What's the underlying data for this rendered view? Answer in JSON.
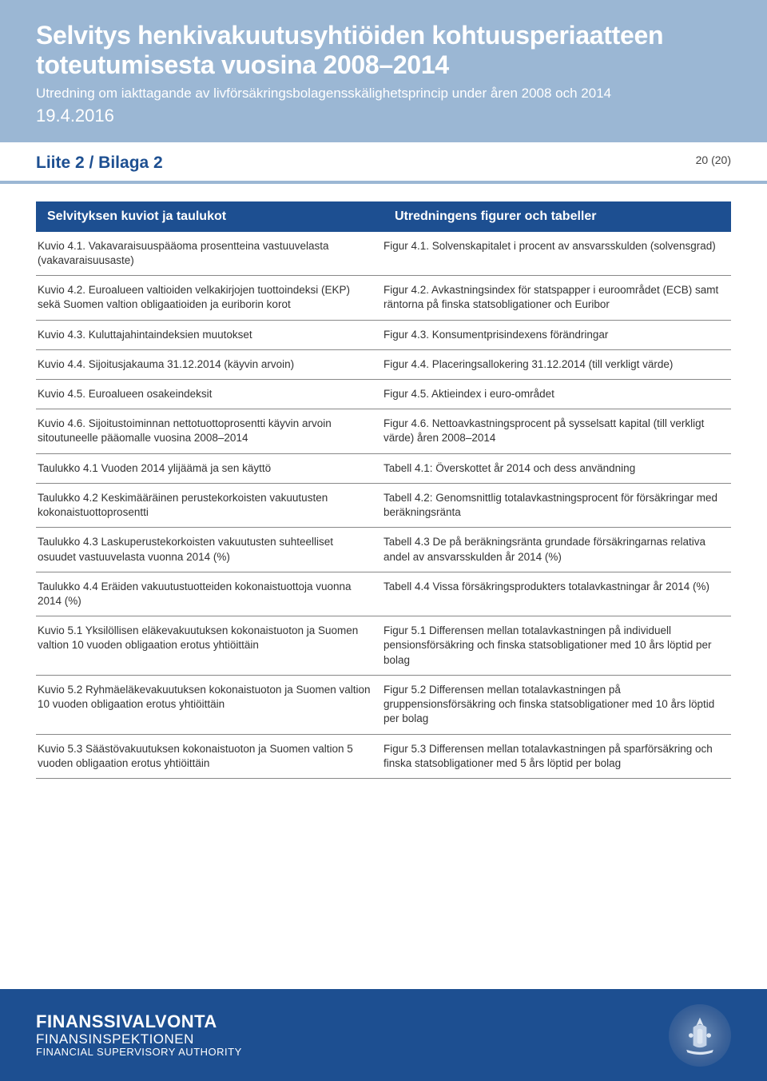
{
  "header": {
    "title": "Selvitys henkivakuutusyhtiöiden kohtuusperiaatteen toteutumisesta vuosina 2008–2014",
    "subtitle": "Utredning om iakttagande av livförsäkringsbolagensskälighetsprincip under åren 2008 och 2014",
    "date": "19.4.2016",
    "section": "Liite 2 / Bilaga 2",
    "page": "20 (20)"
  },
  "table_header": {
    "left": "Selvityksen kuviot ja taulukot",
    "right": "Utredningens figurer och tabeller"
  },
  "rows": [
    {
      "left": "Kuvio 4.1. Vakavaraisuuspääoma prosentteina vastuuvelasta (vakavaraisuusaste)",
      "right": "Figur 4.1. Solvenskapitalet i procent av ansvarsskulden (solvensgrad)"
    },
    {
      "left": "Kuvio 4.2. Euroalueen valtioiden velkakirjojen tuottoindeksi (EKP) sekä Suomen valtion obligaatioiden ja euriborin korot",
      "right": "Figur 4.2. Avkastningsindex för statspapper i euroområdet (ECB) samt räntorna på finska statsobligationer och Euribor"
    },
    {
      "left": "Kuvio 4.3. Kuluttajahintaindeksien muutokset",
      "right": "Figur 4.3. Konsumentprisindexens förändringar"
    },
    {
      "left": "Kuvio 4.4. Sijoitusjakauma 31.12.2014 (käyvin arvoin)",
      "right": "Figur 4.4. Placeringsallokering 31.12.2014 (till verkligt värde)"
    },
    {
      "left": "Kuvio 4.5. Euroalueen osakeindeksit",
      "right": "Figur 4.5. Aktieindex i euro-området"
    },
    {
      "left": "Kuvio 4.6. Sijoitustoiminnan nettotuottoprosentti käyvin arvoin sitoutuneelle pääomalle vuosina 2008–2014",
      "right": "Figur 4.6. Nettoavkastningsprocent på sysselsatt kapital (till verkligt värde) åren 2008–2014"
    },
    {
      "left": "Taulukko 4.1 Vuoden 2014 ylijäämä ja sen käyttö",
      "right": "Tabell 4.1: Överskottet år 2014 och dess användning"
    },
    {
      "left": "Taulukko 4.2 Keskimääräinen perustekorkoisten vakuutusten kokonaistuottoprosentti",
      "right": "Tabell 4.2: Genomsnittlig totalavkastningsprocent för försäkringar med beräkningsränta"
    },
    {
      "left": "Taulukko 4.3 Laskuperustekorkoisten vakuutusten suhteelliset osuudet vastuuvelasta vuonna 2014 (%)",
      "right": "Tabell 4.3 De på beräkningsränta grundade försäkringarnas relativa andel av ansvarsskulden år 2014 (%)"
    },
    {
      "left": "Taulukko 4.4 Eräiden vakuutustuotteiden kokonaistuottoja vuonna 2014 (%)",
      "right": "Tabell 4.4 Vissa försäkringsprodukters totalavkastningar år 2014 (%)"
    },
    {
      "left": "Kuvio 5.1 Yksilöllisen eläkevakuutuksen kokonaistuoton ja Suomen valtion 10 vuoden obligaation erotus yhtiöittäin",
      "right": "Figur 5.1 Differensen mellan totalavkastningen på individuell pensionsförsäkring och finska statsobligationer med 10 års löptid per bolag"
    },
    {
      "left": "Kuvio 5.2 Ryhmäeläkevakuutuksen kokonaistuoton ja Suomen valtion 10 vuoden obligaation erotus yhtiöittäin",
      "right": "Figur 5.2 Differensen mellan totalavkastningen på gruppensionsförsäkring och finska statsobligationer med 10 års löptid per bolag"
    },
    {
      "left": "Kuvio 5.3 Säästövakuutuksen kokonaistuoton ja Suomen valtion 5 vuoden obligaation erotus yhtiöittäin",
      "right": "Figur 5.3 Differensen mellan totalavkastningen på sparförsäkring och finska statsobligationer med 5 års löptid per bolag"
    }
  ],
  "footer": {
    "line1": "FINANSSIVALVONTA",
    "line2": "FINANSINSPEKTIONEN",
    "line3": "FINANCIAL SUPERVISORY AUTHORITY"
  },
  "colors": {
    "header_bg": "#9bb7d4",
    "brand_blue": "#1d4f91",
    "text": "#333333",
    "divider": "#888888"
  }
}
